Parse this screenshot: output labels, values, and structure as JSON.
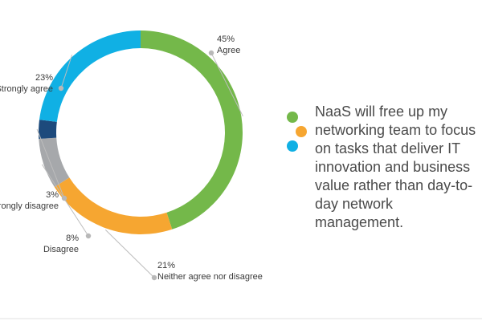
{
  "chart_data": {
    "type": "pie",
    "variant": "donut",
    "slices": [
      {
        "label": "Agree",
        "percent_label": "45%",
        "value": 45,
        "color": "#74b84a"
      },
      {
        "label": "Neither agree nor disagree",
        "percent_label": "21%",
        "value": 21,
        "color": "#f6a631"
      },
      {
        "label": "Disagree",
        "percent_label": "8%",
        "value": 8,
        "color": "#a6a8ab"
      },
      {
        "label": "Strongly disagree",
        "percent_label": "3%",
        "value": 3,
        "color": "#1d4a7c"
      },
      {
        "label": "Strongly agree",
        "percent_label": "23%",
        "value": 23,
        "color": "#10b0e4"
      }
    ],
    "leader_dot_color": "#b8b8b8",
    "leader_line_color": "#bdbdbd"
  },
  "statement": {
    "text": "NaaS will free up my networking team to focus on tasks that deliver IT innovation and business value rather than day-to-day network management."
  },
  "bullet_dots": {
    "colors": [
      "#74b84a",
      "#f6a631",
      "#10b0e4"
    ]
  }
}
